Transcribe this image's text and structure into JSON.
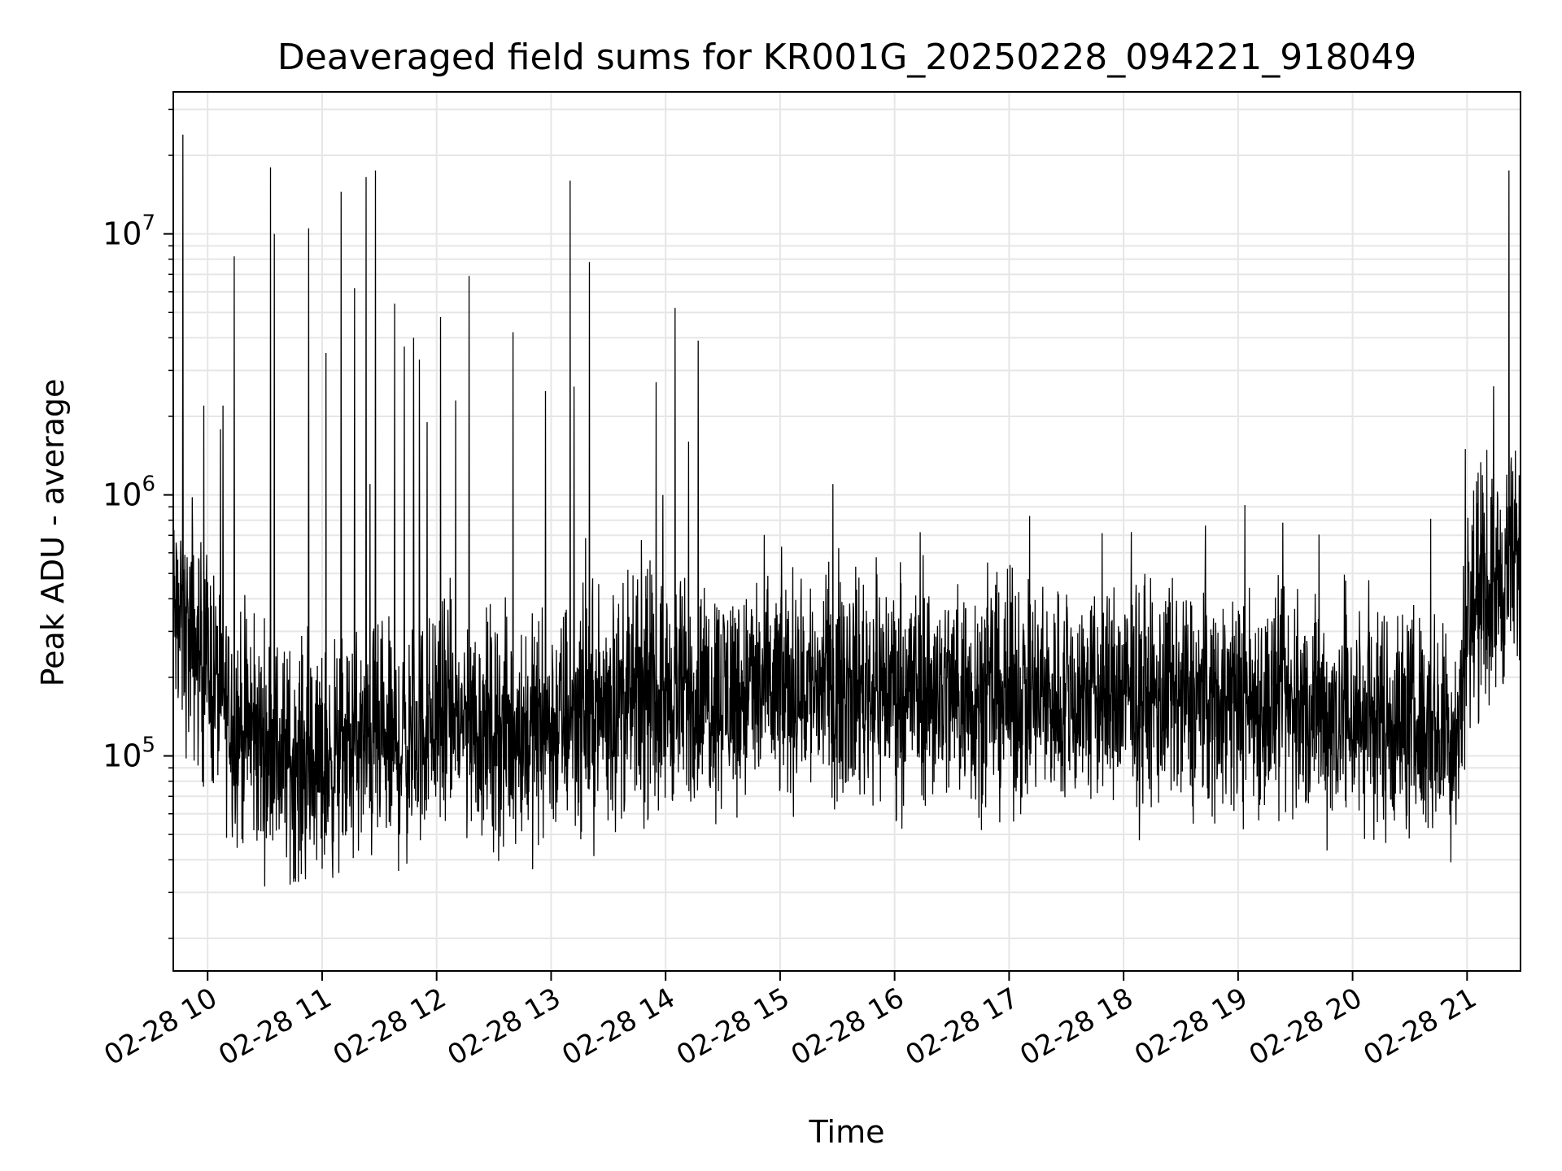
{
  "chart_data": {
    "type": "line",
    "title": "Deaveraged field sums for KR001G_20250228_094221_918049",
    "xlabel": "Time",
    "ylabel": "Peak ADU - average",
    "xscale": "time",
    "yscale": "log",
    "xlim": [
      "2025-02-28 09:42",
      "2025-02-28 21:28"
    ],
    "ylim": [
      15000,
      35000000
    ],
    "grid": true,
    "legend": "none",
    "colors": {
      "line": "#000000",
      "grid": "#e6e6e6",
      "axes": "#000000",
      "background": "#ffffff"
    },
    "x_ticks": [
      {
        "t": "2025-02-28 10:00",
        "label": "02-28 10"
      },
      {
        "t": "2025-02-28 11:00",
        "label": "02-28 11"
      },
      {
        "t": "2025-02-28 12:00",
        "label": "02-28 12"
      },
      {
        "t": "2025-02-28 13:00",
        "label": "02-28 13"
      },
      {
        "t": "2025-02-28 14:00",
        "label": "02-28 14"
      },
      {
        "t": "2025-02-28 15:00",
        "label": "02-28 15"
      },
      {
        "t": "2025-02-28 16:00",
        "label": "02-28 16"
      },
      {
        "t": "2025-02-28 17:00",
        "label": "02-28 17"
      },
      {
        "t": "2025-02-28 18:00",
        "label": "02-28 18"
      },
      {
        "t": "2025-02-28 19:00",
        "label": "02-28 19"
      },
      {
        "t": "2025-02-28 20:00",
        "label": "02-28 20"
      },
      {
        "t": "2025-02-28 21:00",
        "label": "02-28 21"
      }
    ],
    "y_ticks": [
      {
        "value": 100000,
        "mant": "10",
        "exp": "5"
      },
      {
        "value": 1000000,
        "mant": "10",
        "exp": "6"
      },
      {
        "value": 10000000,
        "mant": "10",
        "exp": "7"
      }
    ],
    "series": [
      {
        "values_note": "baseline",
        "x": [
          "2025-02-28 09:42",
          "2025-02-28 09:50",
          "2025-02-28 10:00",
          "2025-02-28 10:15",
          "2025-02-28 10:30",
          "2025-02-28 10:45",
          "2025-02-28 11:00",
          "2025-02-28 11:15",
          "2025-02-28 11:30",
          "2025-02-28 11:45",
          "2025-02-28 12:00",
          "2025-02-28 12:20",
          "2025-02-28 12:40",
          "2025-02-28 13:00",
          "2025-02-28 13:20",
          "2025-02-28 13:40",
          "2025-02-28 14:00",
          "2025-02-28 14:30",
          "2025-02-28 15:00",
          "2025-02-28 15:30",
          "2025-02-28 16:00",
          "2025-02-28 16:30",
          "2025-02-28 17:00",
          "2025-02-28 17:30",
          "2025-02-28 18:00",
          "2025-02-28 18:30",
          "2025-02-28 19:00",
          "2025-02-28 19:30",
          "2025-02-28 20:00",
          "2025-02-28 20:30",
          "2025-02-28 20:55",
          "2025-02-28 21:00",
          "2025-02-28 21:15",
          "2025-02-28 21:28"
        ],
        "y": [
          350000,
          280000,
          220000,
          130000,
          110000,
          95000,
          90000,
          110000,
          105000,
          110000,
          140000,
          130000,
          120000,
          130000,
          150000,
          160000,
          170000,
          175000,
          180000,
          190000,
          185000,
          175000,
          170000,
          165000,
          170000,
          160000,
          165000,
          150000,
          140000,
          135000,
          120000,
          350000,
          450000,
          550000
        ]
      },
      {
        "values_note": "spikes",
        "x": [
          "2025-02-28 09:47",
          "2025-02-28 09:52",
          "2025-02-28 09:58",
          "2025-02-28 10:08",
          "2025-02-28 10:14",
          "2025-02-28 10:33",
          "2025-02-28 10:35",
          "2025-02-28 10:53",
          "2025-02-28 11:02",
          "2025-02-28 11:10",
          "2025-02-28 11:17",
          "2025-02-28 11:23",
          "2025-02-28 11:25",
          "2025-02-28 11:28",
          "2025-02-28 11:38",
          "2025-02-28 11:43",
          "2025-02-28 11:48",
          "2025-02-28 11:51",
          "2025-02-28 11:55",
          "2025-02-28 12:02",
          "2025-02-28 12:10",
          "2025-02-28 12:17",
          "2025-02-28 12:40",
          "2025-02-28 12:57",
          "2025-02-28 13:10",
          "2025-02-28 13:12",
          "2025-02-28 13:20",
          "2025-02-28 13:55",
          "2025-02-28 14:05",
          "2025-02-28 14:12",
          "2025-02-28 14:17",
          "2025-02-28 20:59",
          "2025-02-28 21:22"
        ],
        "y": [
          24000000,
          980000,
          2200000,
          2200000,
          8200000,
          18000000,
          10000000,
          10500000,
          3500000,
          14500000,
          6200000,
          16500000,
          1100000,
          17500000,
          5400000,
          3700000,
          4000000,
          3300000,
          1900000,
          4800000,
          2300000,
          6900000,
          4200000,
          2500000,
          16000000,
          2600000,
          7800000,
          2700000,
          5200000,
          1600000,
          3900000,
          1500000,
          17500000
        ]
      }
    ]
  }
}
